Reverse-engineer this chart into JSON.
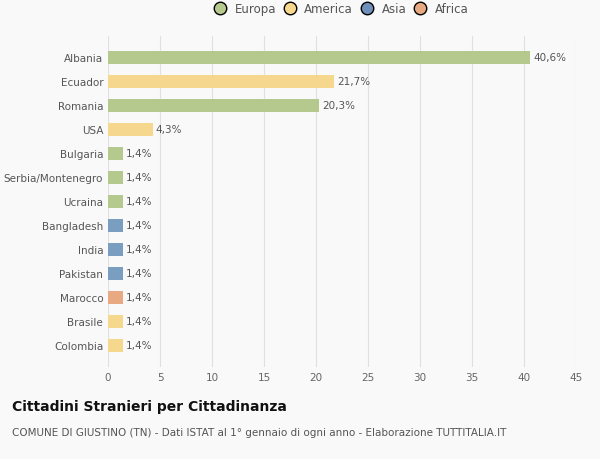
{
  "categories": [
    "Albania",
    "Ecuador",
    "Romania",
    "USA",
    "Bulgaria",
    "Serbia/Montenegro",
    "Ucraina",
    "Bangladesh",
    "India",
    "Pakistan",
    "Marocco",
    "Brasile",
    "Colombia"
  ],
  "values": [
    40.6,
    21.7,
    20.3,
    4.3,
    1.4,
    1.4,
    1.4,
    1.4,
    1.4,
    1.4,
    1.4,
    1.4,
    1.4
  ],
  "labels": [
    "40,6%",
    "21,7%",
    "20,3%",
    "4,3%",
    "1,4%",
    "1,4%",
    "1,4%",
    "1,4%",
    "1,4%",
    "1,4%",
    "1,4%",
    "1,4%",
    "1,4%"
  ],
  "colors": [
    "#b5c98e",
    "#f5d78e",
    "#b5c98e",
    "#f5d78e",
    "#b5c98e",
    "#b5c98e",
    "#b5c98e",
    "#7a9ec0",
    "#7a9ec0",
    "#7a9ec0",
    "#e8a882",
    "#f5d78e",
    "#f5d78e"
  ],
  "legend_labels": [
    "Europa",
    "America",
    "Asia",
    "Africa"
  ],
  "legend_colors": [
    "#b5c98e",
    "#f5d78e",
    "#6e8fba",
    "#e8a882"
  ],
  "title": "Cittadini Stranieri per Cittadinanza",
  "subtitle": "COMUNE DI GIUSTINO (TN) - Dati ISTAT al 1° gennaio di ogni anno - Elaborazione TUTTITALIA.IT",
  "xlim": [
    0,
    45
  ],
  "xticks": [
    0,
    5,
    10,
    15,
    20,
    25,
    30,
    35,
    40,
    45
  ],
  "background_color": "#f9f9f9",
  "grid_color": "#e0e0e0",
  "bar_height": 0.55,
  "title_fontsize": 10,
  "subtitle_fontsize": 7.5,
  "label_fontsize": 7.5,
  "tick_fontsize": 7.5,
  "legend_fontsize": 8.5
}
